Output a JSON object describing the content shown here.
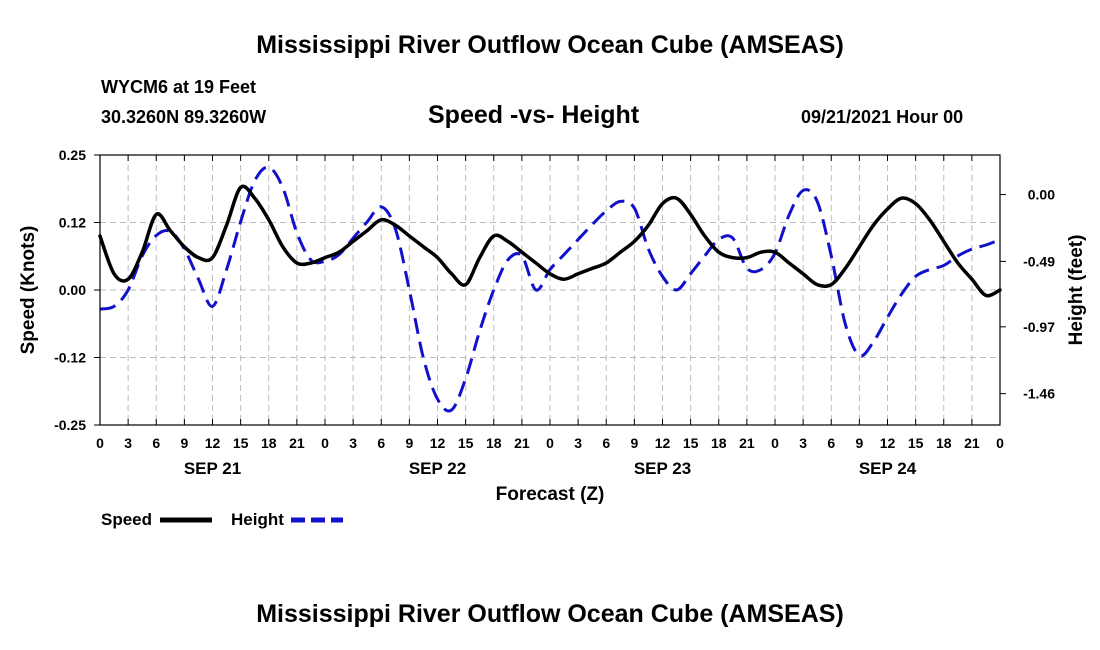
{
  "title": "Mississippi River Outflow Ocean Cube (AMSEAS)",
  "footer_title": "Mississippi River Outflow Ocean Cube (AMSEAS)",
  "station": "WYCM6 at 19 Feet",
  "location": "30.3260N  89.3260W",
  "subtitle": "Speed -vs- Height",
  "date_label": "09/21/2021 Hour 00",
  "chart_data": {
    "type": "line",
    "title": "Speed -vs- Height",
    "xlabel": "Forecast (Z)",
    "ylabel": "Speed (Knots)",
    "y2label": "Height (feet)",
    "x_unit": "hours from 2021-09-21 00Z",
    "xlim": [
      0,
      96
    ],
    "ylim": [
      -0.25,
      0.25
    ],
    "y2lim": [
      -1.69,
      0.29
    ],
    "grid": true,
    "x_tick_labels": [
      "0",
      "3",
      "6",
      "9",
      "12",
      "15",
      "18",
      "21",
      "0",
      "3",
      "6",
      "9",
      "12",
      "15",
      "18",
      "21",
      "0",
      "3",
      "6",
      "9",
      "12",
      "15",
      "18",
      "21",
      "0",
      "3",
      "6",
      "9",
      "12",
      "15",
      "18",
      "21",
      "0"
    ],
    "day_labels": [
      "SEP 21",
      "SEP 22",
      "SEP 23",
      "SEP 24"
    ],
    "y_ticks": [
      "0.25",
      "0.12",
      "0.00",
      "-0.12",
      "-0.25"
    ],
    "y2_ticks": [
      "0.00",
      "-0.49",
      "-0.97",
      "-1.46"
    ],
    "legend_position": "bottom-left",
    "series": [
      {
        "name": "Speed",
        "axis": "left",
        "color": "#000000",
        "dash": "solid",
        "x": [
          0,
          1.5,
          3,
          4.5,
          6,
          7.5,
          9,
          10.5,
          12,
          13.5,
          15,
          16.5,
          18,
          19.5,
          21,
          22.5,
          24,
          25.5,
          27,
          28.5,
          30,
          31.5,
          33,
          34.5,
          36,
          37.5,
          39,
          40.5,
          42,
          43.5,
          45,
          46.5,
          48,
          49.5,
          51,
          52.5,
          54,
          55.5,
          57,
          58.5,
          60,
          61.5,
          63,
          64.5,
          66,
          67.5,
          69,
          70.5,
          72,
          73.5,
          75,
          76.5,
          78,
          79.5,
          81,
          82.5,
          84,
          85.5,
          87,
          88.5,
          90,
          91.5,
          93,
          94.5,
          96
        ],
        "values": [
          0.1,
          0.03,
          0.02,
          0.07,
          0.14,
          0.11,
          0.08,
          0.06,
          0.06,
          0.12,
          0.19,
          0.17,
          0.13,
          0.08,
          0.05,
          0.05,
          0.06,
          0.07,
          0.09,
          0.11,
          0.13,
          0.12,
          0.1,
          0.08,
          0.06,
          0.03,
          0.01,
          0.06,
          0.1,
          0.09,
          0.07,
          0.05,
          0.03,
          0.02,
          0.03,
          0.04,
          0.05,
          0.07,
          0.09,
          0.12,
          0.16,
          0.17,
          0.14,
          0.1,
          0.07,
          0.06,
          0.06,
          0.07,
          0.07,
          0.05,
          0.03,
          0.01,
          0.01,
          0.04,
          0.08,
          0.12,
          0.15,
          0.17,
          0.16,
          0.13,
          0.09,
          0.05,
          0.02,
          -0.01,
          0.0
        ]
      },
      {
        "name": "Height",
        "axis": "right",
        "color": "#1111cc",
        "dash": "dashed",
        "x": [
          0,
          1.5,
          3,
          4.5,
          6,
          7.5,
          9,
          10.5,
          12,
          13.5,
          15,
          16.5,
          18,
          19.5,
          21,
          22.5,
          24,
          25.5,
          27,
          28.5,
          30,
          31.5,
          33,
          34.5,
          36,
          37.5,
          39,
          40.5,
          42,
          43.5,
          45,
          46.5,
          48,
          49.5,
          51,
          52.5,
          54,
          55.5,
          57,
          58.5,
          60,
          61.5,
          63,
          64.5,
          66,
          67.5,
          69,
          70.5,
          72,
          73.5,
          75,
          76.5,
          78,
          79.5,
          81,
          82.5,
          84,
          85.5,
          87,
          88.5,
          90,
          91.5,
          93,
          94.5,
          96
        ],
        "values": [
          -0.84,
          -0.82,
          -0.7,
          -0.45,
          -0.3,
          -0.27,
          -0.4,
          -0.62,
          -0.82,
          -0.55,
          -0.2,
          0.1,
          0.2,
          0.05,
          -0.28,
          -0.48,
          -0.49,
          -0.44,
          -0.32,
          -0.2,
          -0.09,
          -0.25,
          -0.7,
          -1.2,
          -1.5,
          -1.58,
          -1.35,
          -1.0,
          -0.7,
          -0.48,
          -0.45,
          -0.7,
          -0.55,
          -0.44,
          -0.33,
          -0.22,
          -0.12,
          -0.05,
          -0.1,
          -0.4,
          -0.6,
          -0.7,
          -0.58,
          -0.45,
          -0.33,
          -0.32,
          -0.54,
          -0.55,
          -0.43,
          -0.15,
          0.03,
          -0.05,
          -0.45,
          -0.95,
          -1.18,
          -1.08,
          -0.9,
          -0.73,
          -0.6,
          -0.55,
          -0.52,
          -0.45,
          -0.4,
          -0.37,
          -0.33
        ]
      }
    ]
  }
}
